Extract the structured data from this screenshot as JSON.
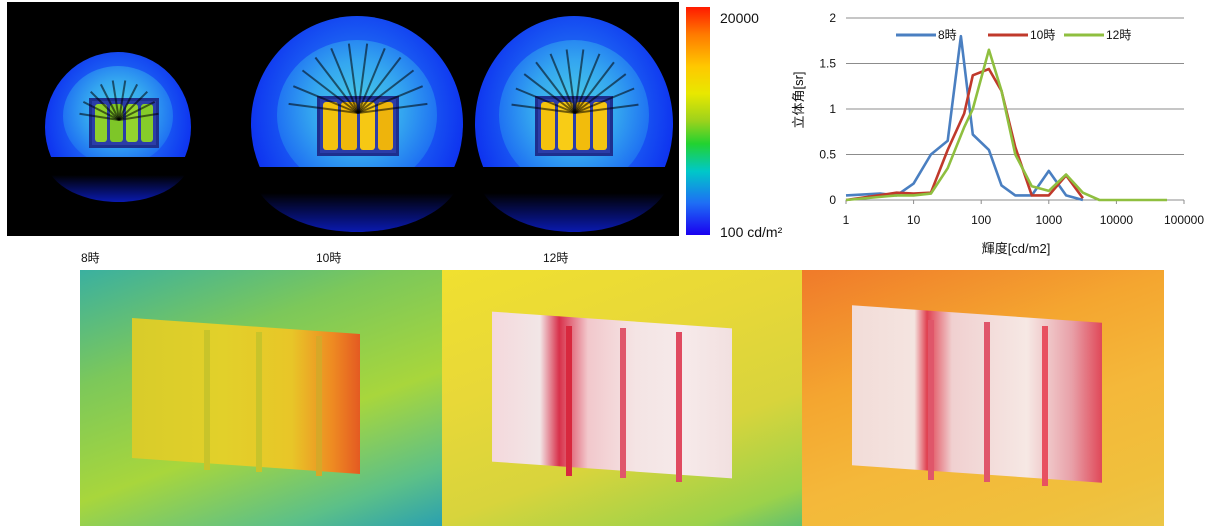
{
  "colorbar": {
    "max_label": "20000",
    "min_label": "100 cd/m²"
  },
  "time_labels": [
    "8時",
    "10時",
    "12時"
  ],
  "colors": {
    "series_8": "#4a7fc1",
    "series_10": "#c0392b",
    "series_12": "#8fbf3f"
  },
  "chart_data": {
    "type": "line",
    "xscale": "log",
    "xlim": [
      1,
      100000
    ],
    "ylim": [
      0,
      2
    ],
    "xticks": [
      "1",
      "10",
      "100",
      "1000",
      "10000",
      "100000"
    ],
    "yticks": [
      "0",
      "0.5",
      "1",
      "1.5",
      "2"
    ],
    "xlabel": "輝度[cd/m2]",
    "ylabel": "立体角[sr]",
    "legend_position": "top",
    "grid": "horizontal",
    "series": [
      {
        "name": "8時",
        "x": [
          1,
          3.2,
          5.6,
          10,
          18,
          32,
          50,
          75,
          130,
          200,
          320,
          560,
          1000,
          1800,
          3200
        ],
        "y": [
          0.05,
          0.07,
          0.05,
          0.18,
          0.5,
          0.65,
          1.8,
          0.72,
          0.55,
          0.16,
          0.05,
          0.05,
          0.32,
          0.05,
          0.0
        ]
      },
      {
        "name": "10時",
        "x": [
          1,
          5.6,
          10,
          18,
          32,
          56,
          75,
          130,
          200,
          320,
          560,
          1000,
          1800,
          3200
        ],
        "y": [
          0.0,
          0.08,
          0.07,
          0.08,
          0.55,
          0.95,
          1.37,
          1.44,
          1.2,
          0.58,
          0.05,
          0.05,
          0.27,
          0.02
        ]
      },
      {
        "name": "12時",
        "x": [
          1,
          5.6,
          10,
          18,
          32,
          56,
          75,
          130,
          200,
          320,
          560,
          1000,
          1800,
          3200,
          5600,
          10000,
          56000
        ],
        "y": [
          0.0,
          0.05,
          0.05,
          0.07,
          0.35,
          0.8,
          1.0,
          1.65,
          1.2,
          0.5,
          0.15,
          0.1,
          0.28,
          0.08,
          0.0,
          0.0,
          0.0
        ]
      }
    ]
  }
}
